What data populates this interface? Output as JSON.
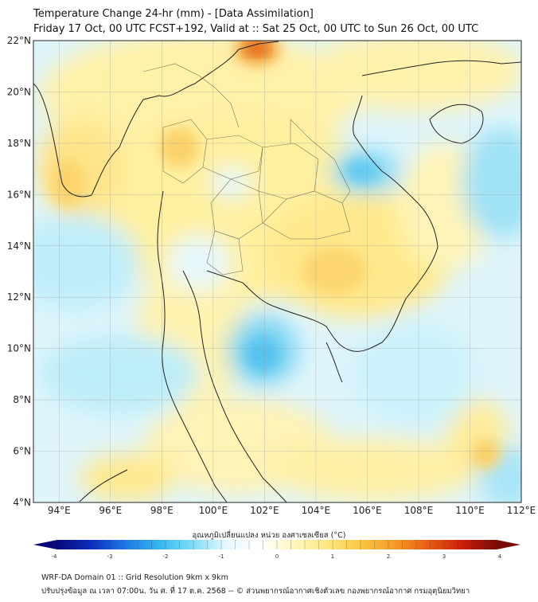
{
  "header": {
    "title": "Temperature Change 24-hr (mm) - [Data Assimilation]",
    "subtitle": "Friday 17 Oct, 00 UTC FCST+192, Valid at :: Sat 25 Oct, 00 UTC to Sun 26 Oct, 00 UTC"
  },
  "map": {
    "lon_range": [
      93,
      112
    ],
    "lat_range": [
      4,
      22
    ],
    "lon_ticks": [
      "94°E",
      "96°E",
      "98°E",
      "100°E",
      "102°E",
      "104°E",
      "106°E",
      "108°E",
      "110°E",
      "112°E"
    ],
    "lat_ticks": [
      "22°N",
      "20°N",
      "18°N",
      "16°N",
      "14°N",
      "12°N",
      "10°N",
      "8°N",
      "6°N",
      "4°N"
    ]
  },
  "colorbar": {
    "title": "อุณหภูมิเปลี่ยนแปลง หน่วย องศาเซลเซียส (°C)",
    "ticks": [
      "-4",
      "-3",
      "-2",
      "-1",
      "0",
      "1",
      "2",
      "3",
      "4"
    ],
    "range": [
      -4,
      4
    ],
    "colors": [
      "#08087a",
      "#0a2fbf",
      "#1f78e6",
      "#35b6ef",
      "#7fdcf6",
      "#e6f8fd",
      "#ffffff",
      "#fff6bf",
      "#ffe680",
      "#f9c640",
      "#f59a28",
      "#ea5a12",
      "#c81f0a",
      "#7a0a05"
    ]
  },
  "footer": {
    "line1": "WRF-DA Domain 01 :: Grid Resolution 9km x 9km",
    "line2": "ปรับปรุงข้อมูล ณ เวลา 07:00น. วัน ศ. ที่ 17 ต.ค. 2568 -- © ส่วนพยากรณ์อากาศเชิงตัวเลข กองพยากรณ์อากาศ กรมอุตุนิยมวิทยา"
  }
}
